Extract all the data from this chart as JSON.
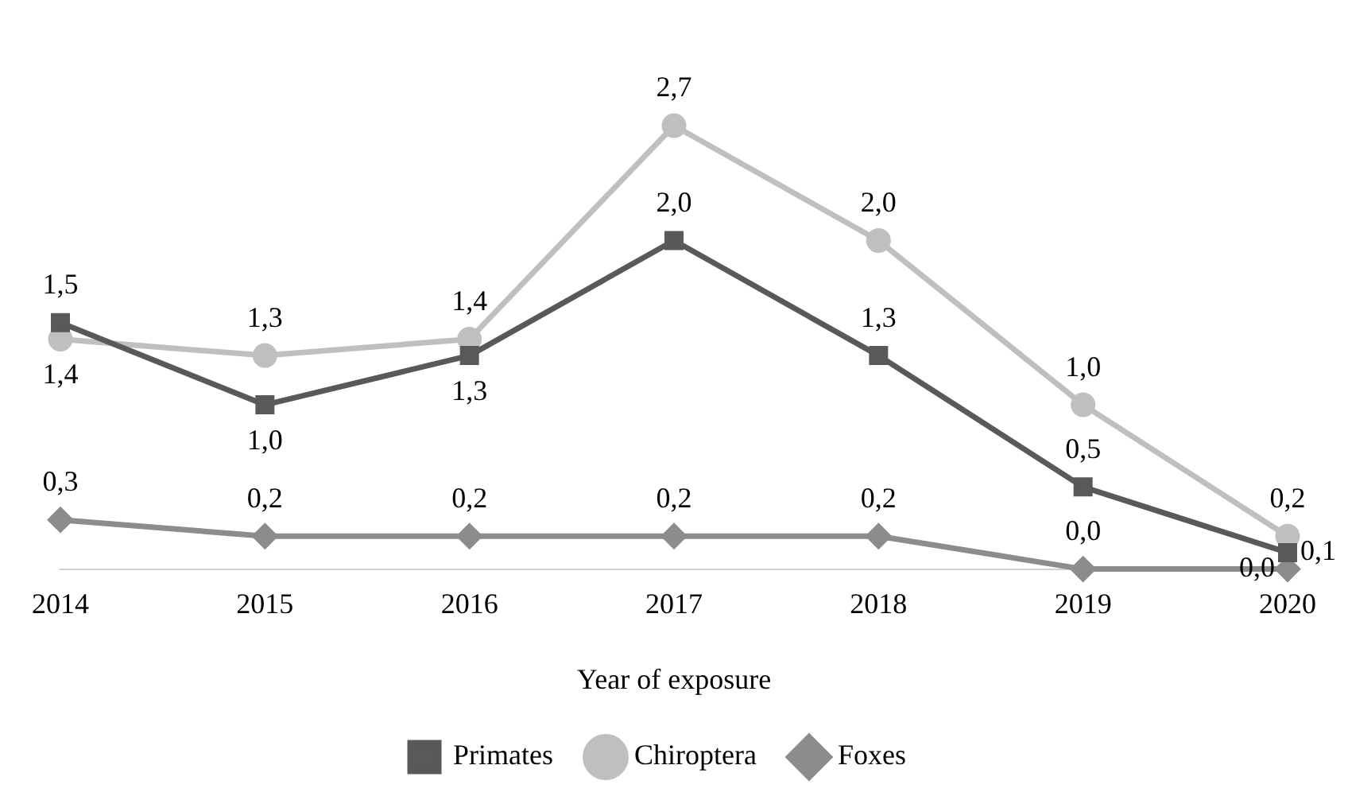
{
  "chart_data": {
    "type": "line",
    "xlabel": "Year of exposure",
    "categories": [
      "2014",
      "2015",
      "2016",
      "2017",
      "2018",
      "2019",
      "2020"
    ],
    "series": [
      {
        "name": "Primates",
        "color": "#595959",
        "marker": "square",
        "values": [
          1.5,
          1.0,
          1.3,
          2.0,
          1.3,
          0.5,
          0.1
        ],
        "value_labels": [
          "1,5",
          "1,0",
          "1,3",
          "2,0",
          "1,3",
          "0,5",
          "0,1"
        ]
      },
      {
        "name": "Chiroptera",
        "color": "#bfbfbf",
        "marker": "circle",
        "values": [
          1.4,
          1.3,
          1.4,
          2.7,
          2.0,
          1.0,
          0.2
        ],
        "value_labels": [
          "1,4",
          "1,3",
          "1,4",
          "2,7",
          "2,0",
          "1,0",
          "0,2"
        ]
      },
      {
        "name": "Foxes",
        "color": "#8c8c8c",
        "marker": "diamond",
        "values": [
          0.3,
          0.2,
          0.2,
          0.2,
          0.2,
          0.0,
          0.0
        ],
        "value_labels": [
          "0,3",
          "0,2",
          "0,2",
          "0,2",
          "0,2",
          "0,0",
          "0,0"
        ]
      }
    ],
    "legend": "bottom",
    "grid": false,
    "tick_labels": "x",
    "line_style": "solid"
  }
}
